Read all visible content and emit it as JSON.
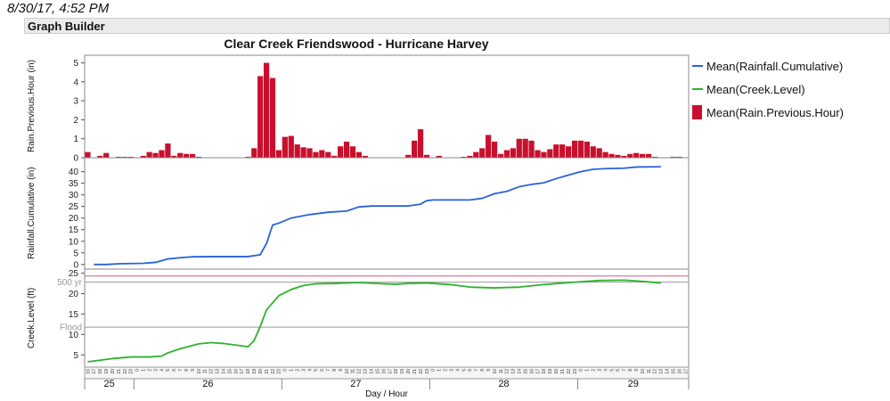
{
  "header": {
    "timestamp": "8/30/17, 4:52 PM",
    "title": "Graph Builder"
  },
  "chart_data": {
    "type": "bar+line",
    "title": "Clear Creek Friendswood - Hurricane Harvey",
    "xlabel": "Day / Hour",
    "hours_start": 16,
    "days": [
      {
        "label": "25",
        "start_index": 0
      },
      {
        "label": "26",
        "start_index": 8
      },
      {
        "label": "27",
        "start_index": 32
      },
      {
        "label": "28",
        "start_index": 56
      },
      {
        "label": "29",
        "start_index": 80
      }
    ],
    "rain_panel": {
      "ylabel": "Rain.Previous.Hour (in)",
      "ylim": [
        0,
        5.4
      ],
      "yticks": [
        0,
        1,
        2,
        3,
        4,
        5
      ],
      "series_name": "Mean(Rain.Previous.Hour)",
      "color": "#c8102e",
      "values": [
        0.3,
        0,
        0.1,
        0.25,
        0,
        0.05,
        0.05,
        0.05,
        0,
        0.1,
        0.3,
        0.25,
        0.4,
        0.75,
        0.1,
        0.25,
        0.2,
        0.2,
        0.05,
        0,
        0,
        0,
        0,
        0,
        0,
        0,
        0.05,
        0.5,
        4.3,
        5.0,
        4.2,
        0.4,
        1.1,
        1.15,
        0.7,
        0.55,
        0.5,
        0.3,
        0.4,
        0.3,
        0.1,
        0.6,
        0.85,
        0.6,
        0.3,
        0.1,
        0,
        0,
        0,
        0,
        0,
        0,
        0.15,
        0.9,
        1.5,
        0.15,
        0,
        0.1,
        0,
        0,
        0,
        0.05,
        0.1,
        0.3,
        0.5,
        1.2,
        0.85,
        0.2,
        0.4,
        0.5,
        1.0,
        1.0,
        0.9,
        0.4,
        0.3,
        0.45,
        0.7,
        0.7,
        0.6,
        0.9,
        0.9,
        0.85,
        0.6,
        0.5,
        0.3,
        0.2,
        0.15,
        0.1,
        0.2,
        0.25,
        0.2,
        0.2,
        0.05,
        0,
        0,
        0.05,
        0.05,
        0
      ]
    },
    "cumulative_panel": {
      "ylabel": "Rainfall.Cumulative (in)",
      "ylim": [
        -2,
        46
      ],
      "yticks": [
        0,
        5,
        10,
        15,
        20,
        25,
        30,
        35,
        40
      ],
      "series_name": "Mean(Rainfall.Cumulative)",
      "color": "#2a62d8",
      "points": [
        [
          1,
          0
        ],
        [
          3,
          0
        ],
        [
          5,
          0.3
        ],
        [
          9,
          0.5
        ],
        [
          11,
          0.9
        ],
        [
          13,
          2.4
        ],
        [
          15,
          2.9
        ],
        [
          17,
          3.3
        ],
        [
          21,
          3.4
        ],
        [
          26,
          3.4
        ],
        [
          28,
          4.2
        ],
        [
          29,
          9
        ],
        [
          30,
          17
        ],
        [
          31,
          17.8
        ],
        [
          33,
          20
        ],
        [
          36,
          21.5
        ],
        [
          39,
          22.5
        ],
        [
          42,
          23
        ],
        [
          44,
          24.8
        ],
        [
          46,
          25.2
        ],
        [
          52,
          25.2
        ],
        [
          54,
          26
        ],
        [
          55,
          27.5
        ],
        [
          56,
          27.8
        ],
        [
          62,
          27.8
        ],
        [
          64,
          28.5
        ],
        [
          66,
          30.5
        ],
        [
          68,
          31.5
        ],
        [
          70,
          33.5
        ],
        [
          72,
          34.5
        ],
        [
          74,
          35.2
        ],
        [
          76,
          37
        ],
        [
          78,
          38.5
        ],
        [
          80,
          40
        ],
        [
          82,
          41
        ],
        [
          84,
          41.3
        ],
        [
          87,
          41.5
        ],
        [
          89,
          42
        ],
        [
          93,
          42.1
        ]
      ]
    },
    "creek_panel": {
      "ylabel": "Creek.Level (ft)",
      "ylim": [
        2,
        26
      ],
      "yticks": [
        5,
        10,
        15,
        20,
        25
      ],
      "series_name": "Mean(Creek.Level)",
      "color": "#2db22d",
      "reference_lines": [
        {
          "label": "500 yr",
          "value": 22.8,
          "color": "#999999"
        },
        {
          "label": "Flood",
          "value": 11.8,
          "color": "#999999"
        },
        {
          "label": "",
          "value": 24.3,
          "color": "#d35b8a"
        }
      ],
      "points": [
        [
          0,
          3.3
        ],
        [
          2,
          3.7
        ],
        [
          4,
          4.1
        ],
        [
          7,
          4.5
        ],
        [
          10,
          4.5
        ],
        [
          12,
          4.7
        ],
        [
          13,
          5.5
        ],
        [
          15,
          6.5
        ],
        [
          18,
          7.7
        ],
        [
          20,
          8
        ],
        [
          22,
          7.8
        ],
        [
          25,
          7.2
        ],
        [
          26,
          7
        ],
        [
          27,
          8.5
        ],
        [
          28,
          12
        ],
        [
          29,
          16
        ],
        [
          31,
          19.5
        ],
        [
          33,
          21
        ],
        [
          35,
          22
        ],
        [
          37,
          22.4
        ],
        [
          40,
          22.5
        ],
        [
          44,
          22.7
        ],
        [
          48,
          22.4
        ],
        [
          50,
          22.3
        ],
        [
          52,
          22.5
        ],
        [
          55,
          22.6
        ],
        [
          59,
          22.2
        ],
        [
          62,
          21.6
        ],
        [
          66,
          21.4
        ],
        [
          70,
          21.6
        ],
        [
          74,
          22.2
        ],
        [
          78,
          22.7
        ],
        [
          83,
          23.2
        ],
        [
          87,
          23.3
        ],
        [
          90,
          23
        ],
        [
          93,
          22.6
        ]
      ]
    }
  },
  "legend": {
    "items": [
      {
        "label": "Mean(Rainfall.Cumulative)",
        "color": "#2a62d8",
        "kind": "line"
      },
      {
        "label": "Mean(Creek.Level)",
        "color": "#2db22d",
        "kind": "line"
      },
      {
        "label": "Mean(Rain.Previous.Hour)",
        "color": "#c8102e",
        "kind": "bar"
      }
    ]
  }
}
